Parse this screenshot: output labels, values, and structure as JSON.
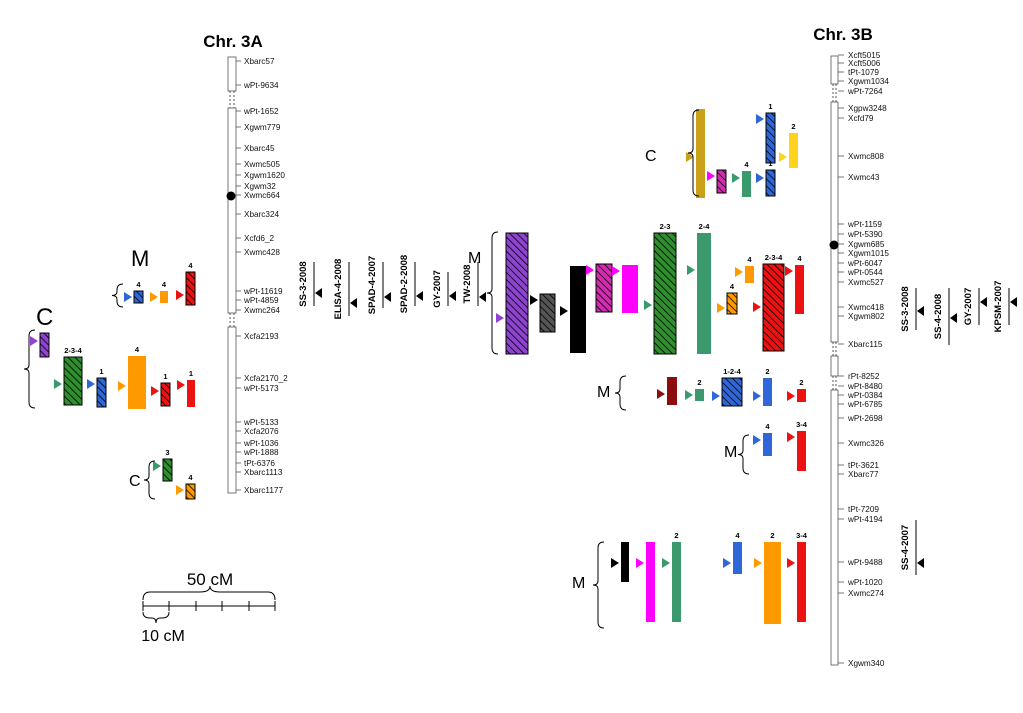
{
  "chromosomes": [
    {
      "id": "3a",
      "title": "Chr. 3A",
      "markers": [
        "Xbarc57",
        "wPt-9634",
        "wPt-1652",
        "Xgwm779",
        "Xbarc45",
        "Xwmc505",
        "Xgwm1620",
        "Xgwm32",
        "Xwmc664",
        "Xbarc324",
        "Xcfd6_2",
        "Xwmc428",
        "wPt-11619",
        "wPt-4859",
        "Xwmc264",
        "Xcfa2193",
        "Xcfa2170_2",
        "wPt-5173",
        "wPt-5133",
        "Xcfa2076",
        "wPt-1036",
        "wPt-1888",
        "tPt-6376",
        "Xbarc1113",
        "Xbarc1177"
      ]
    },
    {
      "id": "3b",
      "title": "Chr. 3B",
      "markers": [
        "Xcft5015",
        "Xcft5006",
        "tPt-1079",
        "Xgwm1034",
        "wPt-7264",
        "Xgpw3248",
        "Xcfd79",
        "Xwmc808",
        "Xwmc43",
        "wPt-1159",
        "wPt-5390",
        "Xgwm685",
        "Xgwm1015",
        "wPt-6047",
        "wPt-0544",
        "Xwmc527",
        "Xwmc418",
        "Xgwm802",
        "Xbarc115",
        "rPt-8252",
        "wPt-8480",
        "wPt-0384",
        "wPt-6785",
        "wPt-2698",
        "Xwmc326",
        "tPt-3621",
        "Xbarc77",
        "tPt-7209",
        "wPt-4194",
        "wPt-9488",
        "wPt-1020",
        "Xwmc274",
        "Xgwm340"
      ]
    }
  ],
  "qtl_3a": [
    "SS-3-2008",
    "ELISA-4-2008",
    "SPAD-4-2007",
    "SPAD-2-2008",
    "GY-2007",
    "TW-2008"
  ],
  "qtl_3b": [
    "SS-3-2008",
    "SS-4-2008",
    "GY-2007",
    "KPSM-2007",
    "SS-4-2007"
  ],
  "group_labels": {
    "C": "C",
    "M": "M"
  },
  "bar_labels": {
    "a_m_4a": "4",
    "a_m_4b": "4",
    "a_m_4c": "4",
    "a_c_234": "2-3-4",
    "a_c_1a": "1",
    "a_c_4": "4",
    "a_c_1b": "1",
    "a_c_1c": "1",
    "a_c2_3": "3",
    "a_c2_4": "4",
    "b_c_1": "1",
    "b_c_2": "2",
    "b_c_4": "4",
    "b_c_1b": "1",
    "b_m_23": "2-3",
    "b_m_24": "2-4",
    "b_m_4a": "4",
    "b_m_234": "2-3-4",
    "b_m_4b": "4",
    "b_m_4c": "4",
    "b_m2_2a": "2",
    "b_m2_124": "1-2-4",
    "b_m2_2b": "2",
    "b_m2_2c": "2",
    "b_m3_4": "4",
    "b_m3_34": "3-4",
    "b_m4_2a": "2",
    "b_m4_4": "4",
    "b_m4_2b": "2",
    "b_m4_34": "3-4"
  },
  "scale": {
    "label_50": "50 cM",
    "label_10": "10 cM"
  },
  "colors": {
    "purple": "#8e44d0",
    "blue": "#2f67d8",
    "orange": "#ff9900",
    "red": "#ee1111",
    "green": "#2f8f2f",
    "teal": "#3a9a6e",
    "magenta": "#ff00ff",
    "black": "#000000",
    "gray": "#555555",
    "gold": "#c9a21a",
    "yellow": "#ffd21e",
    "darkred": "#8b0d0d",
    "pink": "#d42cb0"
  }
}
